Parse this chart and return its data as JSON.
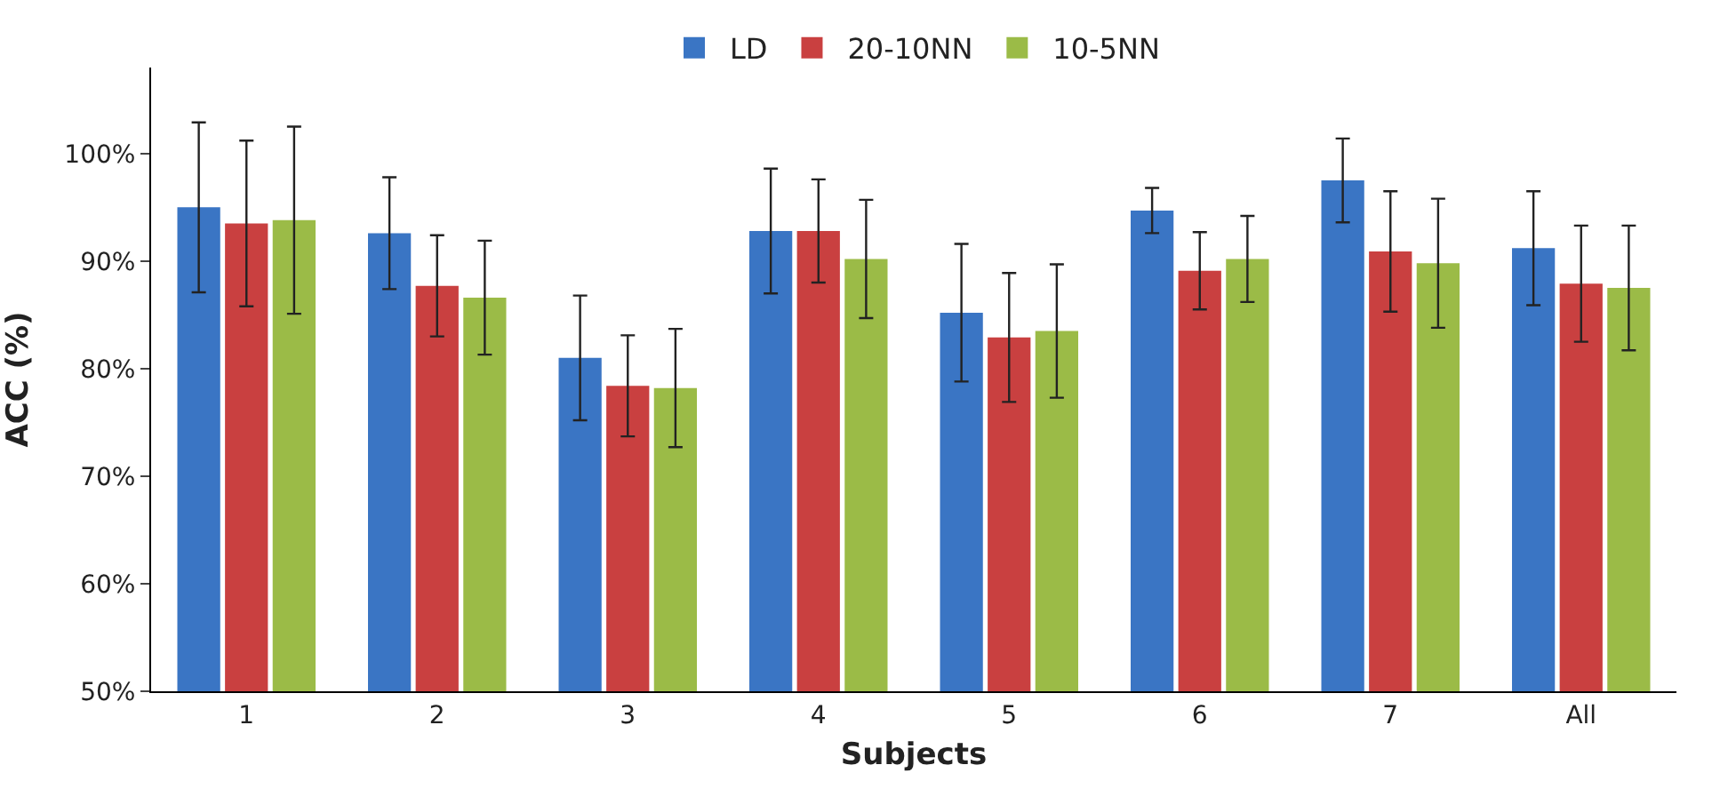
{
  "chart_data": {
    "type": "bar",
    "xlabel": "Subjects",
    "ylabel": "ACC (%)",
    "categories": [
      "1",
      "2",
      "3",
      "4",
      "5",
      "6",
      "7",
      "All"
    ],
    "series": [
      {
        "name": "LD",
        "color": "#3a75c4",
        "values": [
          95.0,
          92.6,
          81.0,
          92.8,
          85.2,
          94.7,
          97.5,
          91.2
        ],
        "errors": [
          7.9,
          5.2,
          5.8,
          5.8,
          6.4,
          2.1,
          3.9,
          5.3
        ]
      },
      {
        "name": "20-10NN",
        "color": "#c94040",
        "values": [
          93.5,
          87.7,
          78.4,
          92.8,
          82.9,
          89.1,
          90.9,
          87.9
        ],
        "errors": [
          7.7,
          4.7,
          4.7,
          4.8,
          6.0,
          3.6,
          5.6,
          5.4
        ]
      },
      {
        "name": "10-5NN",
        "color": "#9bbb47",
        "values": [
          93.8,
          86.6,
          78.2,
          90.2,
          83.5,
          90.2,
          89.8,
          87.5
        ],
        "errors": [
          8.7,
          5.3,
          5.5,
          5.5,
          6.2,
          4.0,
          6.0,
          5.8
        ]
      }
    ],
    "ylim": [
      50,
      108
    ],
    "yticks": [
      {
        "value": 50,
        "label": "50%"
      },
      {
        "value": 60,
        "label": "60%"
      },
      {
        "value": 70,
        "label": "70%"
      },
      {
        "value": 80,
        "label": "80%"
      },
      {
        "value": 90,
        "label": "90%"
      },
      {
        "value": 100,
        "label": "100%"
      }
    ],
    "legend": "top"
  }
}
